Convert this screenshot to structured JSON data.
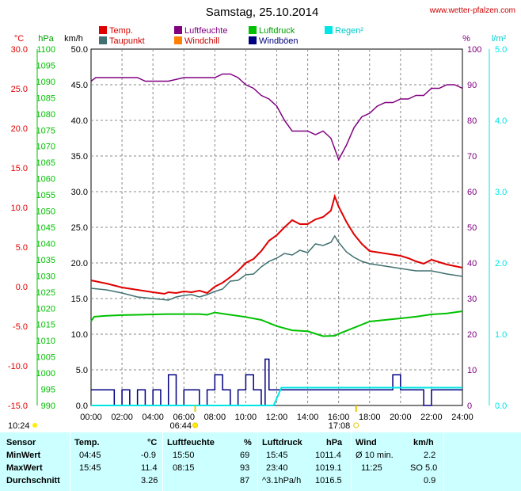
{
  "header": {
    "title": "Samstag, 25.10.2014",
    "site": "www.wetter-pfalzen.com"
  },
  "legend": [
    {
      "name": "Temp.",
      "color": "#e00000"
    },
    {
      "name": "Luftfeuchte",
      "color": "#800080"
    },
    {
      "name": "Luftdruck",
      "color": "#00c000"
    },
    {
      "name": "Regen²",
      "color": "#00e5e5"
    },
    {
      "name": "Taupunkt",
      "color": "#407070"
    },
    {
      "name": "Windchill",
      "color": "#ff8000"
    },
    {
      "name": "Windböen",
      "color": "#000080"
    }
  ],
  "axis_units": {
    "temp": "°C",
    "pressure": "hPa",
    "wind": "km/h",
    "humidity": "%",
    "rain": "l/m²"
  },
  "chart_data": {
    "type": "line",
    "title": "Samstag, 25.10.2014",
    "x_ticks": [
      "00:00",
      "02:00",
      "04:00",
      "06:00",
      "08:00",
      "10:00",
      "12:00",
      "14:00",
      "16:00",
      "18:00",
      "20:00",
      "22:00",
      "24:00"
    ],
    "axes": {
      "temp": {
        "range": [
          -15,
          30
        ],
        "ticks": [
          "30.0",
          "25.0",
          "20.0",
          "15.0",
          "10.0",
          "5.0",
          "0.0",
          "-5.0",
          "-10.0",
          "-15.0"
        ],
        "color": "#e00000"
      },
      "pressure": {
        "range": [
          990,
          1100
        ],
        "ticks": [
          "1100",
          "1095",
          "1090",
          "1085",
          "1080",
          "1075",
          "1070",
          "1065",
          "1060",
          "1055",
          "1050",
          "1045",
          "1040",
          "1035",
          "1030",
          "1025",
          "1020",
          "1015",
          "1010",
          "1005",
          "1000",
          "995",
          "990"
        ],
        "color": "#00c000"
      },
      "wind": {
        "range": [
          0,
          50
        ],
        "ticks": [
          "50.0",
          "45.0",
          "40.0",
          "35.0",
          "30.0",
          "25.0",
          "20.0",
          "15.0",
          "10.0",
          "5.0",
          "0.0"
        ],
        "color": "#000000"
      },
      "humidity": {
        "range": [
          0,
          100
        ],
        "ticks": [
          "100",
          "90",
          "80",
          "70",
          "60",
          "50",
          "40",
          "30",
          "20",
          "10",
          "0"
        ],
        "color": "#800080"
      },
      "rain": {
        "range": [
          0,
          5
        ],
        "ticks": [
          "5.0",
          "4.0",
          "3.0",
          "2.0",
          "1.0",
          "0.0"
        ],
        "color": "#00e5e5"
      }
    },
    "grid": true,
    "series": [
      {
        "name": "Temp.",
        "axis": "temp",
        "color": "#e00000",
        "x": [
          0,
          1,
          2,
          3,
          4,
          4.75,
          5,
          5.5,
          6,
          6.5,
          7,
          7.5,
          8,
          8.5,
          9,
          9.5,
          10,
          10.5,
          11,
          11.5,
          12,
          12.5,
          13,
          13.5,
          14,
          14.5,
          15,
          15.5,
          15.75,
          16,
          16.5,
          17,
          17.5,
          18,
          19,
          20,
          20.5,
          21,
          21.5,
          22,
          22.5,
          23,
          23.5,
          24
        ],
        "y": [
          0.8,
          0.4,
          -0.1,
          -0.4,
          -0.7,
          -0.9,
          -0.7,
          -0.8,
          -0.6,
          -0.7,
          -0.5,
          -0.8,
          0,
          0.5,
          1.2,
          2,
          3,
          3.5,
          4.5,
          5.8,
          6.5,
          7.5,
          8.4,
          7.9,
          7.9,
          8.5,
          8.8,
          9.6,
          11.4,
          10.1,
          8.2,
          6.6,
          5.4,
          4.5,
          4.2,
          3.9,
          3.6,
          3.2,
          2.9,
          3.4,
          3.1,
          2.8,
          2.6,
          2.4
        ]
      },
      {
        "name": "Taupunkt",
        "axis": "temp",
        "color": "#407070",
        "x": [
          0,
          1,
          2,
          3,
          4,
          5,
          5.5,
          6,
          6.5,
          7,
          7.5,
          8,
          8.5,
          9,
          9.5,
          10,
          10.5,
          11,
          11.5,
          12,
          12.5,
          13,
          13.5,
          14,
          14.5,
          15,
          15.5,
          15.75,
          16,
          16.5,
          17,
          17.5,
          18,
          19,
          20,
          21,
          22,
          23,
          24
        ],
        "y": [
          -0.2,
          -0.4,
          -0.8,
          -1.3,
          -1.5,
          -1.7,
          -1.3,
          -1.1,
          -1.0,
          -1.3,
          -1.0,
          -0.6,
          -0.3,
          0.7,
          0.8,
          1.5,
          1.6,
          2.5,
          3.2,
          3.6,
          4.2,
          4.0,
          4.6,
          4.3,
          5.4,
          5.2,
          5.6,
          6.4,
          5.6,
          4.4,
          3.7,
          3.2,
          2.9,
          2.6,
          2.3,
          2.0,
          2.0,
          1.6,
          1.3
        ]
      },
      {
        "name": "Luftdruck",
        "axis": "pressure",
        "color": "#00c000",
        "x": [
          0,
          0.2,
          1,
          2,
          3,
          4,
          5,
          6,
          7,
          7.5,
          8,
          9,
          10,
          11,
          12,
          13,
          14,
          15,
          15.75,
          16,
          17,
          18,
          19,
          20,
          21,
          22,
          23,
          24
        ],
        "y": [
          1016.0,
          1017.4,
          1017.7,
          1017.9,
          1018.0,
          1018.1,
          1018.2,
          1018.2,
          1018.2,
          1018.0,
          1018.7,
          1018.0,
          1017.3,
          1016.4,
          1014.5,
          1013.2,
          1012.9,
          1011.4,
          1011.5,
          1012.1,
          1014.0,
          1015.9,
          1016.4,
          1016.9,
          1017.4,
          1018.1,
          1018.4,
          1019.1
        ]
      },
      {
        "name": "Luftfeuchte",
        "axis": "humidity",
        "color": "#800080",
        "x": [
          0,
          0.3,
          1,
          2,
          3,
          3.5,
          4,
          5,
          6,
          7,
          7.5,
          8,
          8.5,
          9,
          9.5,
          10,
          10.5,
          11,
          11.5,
          12,
          12.5,
          13,
          13.5,
          14,
          14.5,
          15,
          15.5,
          15.75,
          16,
          16.5,
          17,
          17.5,
          18,
          18.5,
          19,
          19.5,
          20,
          20.5,
          21,
          21.5,
          22,
          22.5,
          23,
          23.5,
          24
        ],
        "y": [
          91,
          92,
          92,
          92,
          92,
          91,
          91,
          91,
          92,
          92,
          92,
          92,
          93,
          93,
          92,
          90,
          89,
          87,
          86,
          84,
          80,
          77,
          77,
          77,
          76,
          77,
          75,
          72,
          69,
          73,
          78,
          81,
          82,
          84,
          85,
          85,
          86,
          86,
          87,
          87,
          89,
          89,
          90,
          90,
          89
        ]
      },
      {
        "name": "Windböen",
        "axis": "wind",
        "color": "#000080",
        "x": [
          0,
          1,
          1.5,
          2,
          2.5,
          3,
          3.5,
          4,
          4.5,
          5,
          5.5,
          6,
          6.5,
          7,
          7.5,
          8,
          8.5,
          9,
          9.5,
          10,
          10.5,
          11,
          11.25,
          11.5,
          12,
          12.5,
          13,
          13.5,
          14,
          14.5,
          15,
          15.5,
          16,
          16.5,
          17,
          17.5,
          18,
          18.5,
          19,
          19.5,
          20,
          20.5,
          21,
          21.5,
          22,
          22.5,
          23,
          23.5,
          24
        ],
        "y": [
          2.2,
          2.2,
          0,
          2.2,
          0,
          2.2,
          0,
          2.2,
          0,
          4.3,
          0,
          2.2,
          2.2,
          0,
          2.2,
          4.3,
          2.2,
          0,
          2.2,
          4.3,
          2.2,
          0,
          6.5,
          2.2,
          2.2,
          2.2,
          2.2,
          2.2,
          2.2,
          2.2,
          2.2,
          2.2,
          2.2,
          2.2,
          2.2,
          2.2,
          2.2,
          2.2,
          2.2,
          4.3,
          2.2,
          2.2,
          2.2,
          0,
          2.2,
          2.2,
          2.2,
          2.2,
          2.2
        ]
      },
      {
        "name": "Regen²",
        "axis": "rain",
        "color": "#00e5e5",
        "x": [
          0,
          11.8,
          12.3,
          24
        ],
        "y": [
          0,
          0,
          0.25,
          0.25
        ]
      }
    ]
  },
  "sun_markers": [
    {
      "label": "10:24",
      "x": -0.5,
      "row": "below"
    },
    {
      "label": "06:44",
      "x": 6.73,
      "row": "lower"
    },
    {
      "label": "17:08",
      "x": 17.13,
      "row": "lower"
    }
  ],
  "stats": {
    "headers": {
      "sensor": "Sensor",
      "temp": "Temp.",
      "temp_unit": "°C",
      "hum": "Luftfeuchte",
      "hum_unit": "%",
      "press": "Luftdruck",
      "press_unit": "hPa",
      "wind": "Wind",
      "wind_unit": "km/h"
    },
    "rows": [
      {
        "label": "MinWert",
        "temp_time": "04:45",
        "temp_val": "-0.9",
        "hum_time": "15:50",
        "hum_val": "69",
        "press_time": "15:45",
        "press_val": "1011.4",
        "wind_time": "Ø 10 min.",
        "wind_val": "2.2"
      },
      {
        "label": "MaxWert",
        "temp_time": "15:45",
        "temp_val": "11.4",
        "hum_time": "08:15",
        "hum_val": "93",
        "press_time": "23:40",
        "press_val": "1019.1",
        "wind_time": "11:25",
        "wind_val": "SO 5.0"
      },
      {
        "label": "Durchschnitt",
        "temp_time": "",
        "temp_val": "3.26",
        "hum_time": "",
        "hum_val": "87",
        "press_time": "^3.1hPa/h",
        "press_val": "1016.5",
        "wind_time": "",
        "wind_val": "0.9"
      }
    ]
  }
}
